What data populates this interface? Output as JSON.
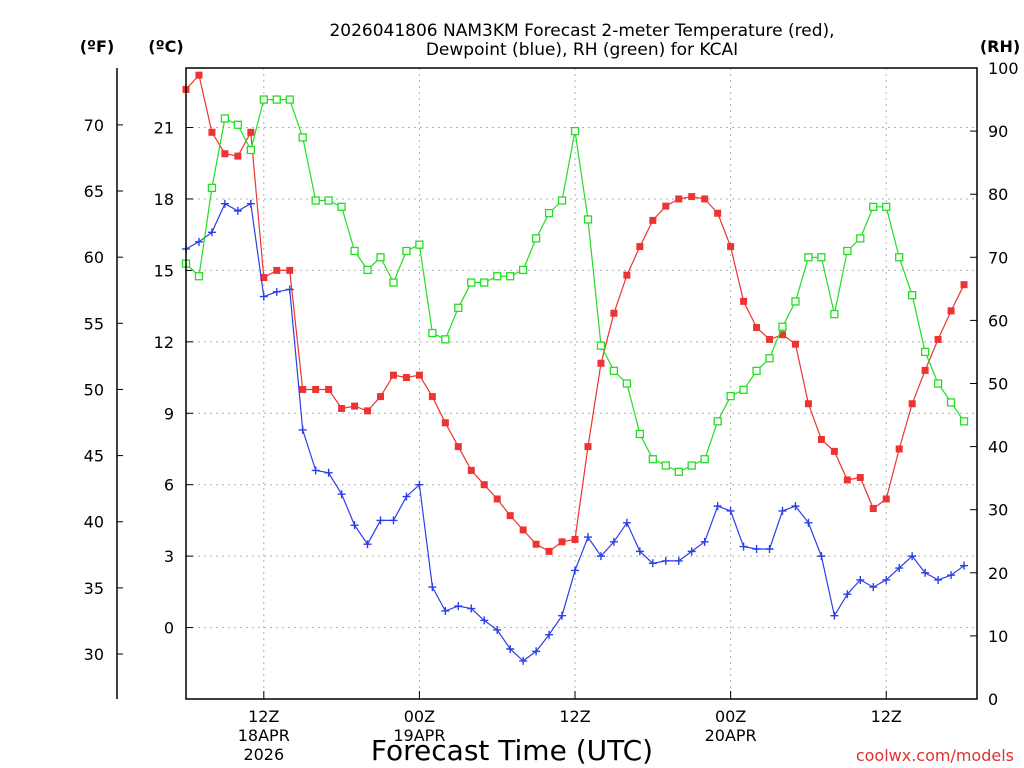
{
  "chart_data": {
    "type": "line",
    "title_line1": "2026041806 NAM3KM Forecast 2-meter Temperature (red),",
    "title_line2": "Dewpoint (blue), RH (green) for KCAI",
    "xlabel": "Forecast Time (UTC)",
    "left_unit_f": "(ºF)",
    "left_unit_c": "(ºC)",
    "right_unit": "(RH)",
    "credit": "coolwx.com/models",
    "x_range_hours": [
      0,
      61
    ],
    "celsius_range": [
      -3.0,
      23.5
    ],
    "rh_range": [
      0,
      100
    ],
    "fahrenheit_ticks": [
      "70",
      "65",
      "60",
      "55",
      "50",
      "45",
      "40",
      "35",
      "30"
    ],
    "fahrenheit_tick_values": [
      70,
      65,
      60,
      55,
      50,
      45,
      40,
      35,
      30
    ],
    "celsius_ticks": [
      "21",
      "18",
      "15",
      "12",
      "9",
      "6",
      "3",
      "0"
    ],
    "celsius_tick_values": [
      21,
      18,
      15,
      12,
      9,
      6,
      3,
      0
    ],
    "rh_ticks": [
      "100",
      "90",
      "80",
      "70",
      "60",
      "50",
      "40",
      "30",
      "20",
      "10",
      "0"
    ],
    "rh_tick_values": [
      100,
      90,
      80,
      70,
      60,
      50,
      40,
      30,
      20,
      10,
      0
    ],
    "x_ticks": [
      {
        "hour": 6,
        "l1": "12Z",
        "l2": "18APR",
        "l3": "2026"
      },
      {
        "hour": 18,
        "l1": "00Z",
        "l2": "19APR",
        "l3": ""
      },
      {
        "hour": 30,
        "l1": "12Z",
        "l2": "",
        "l3": ""
      },
      {
        "hour": 42,
        "l1": "00Z",
        "l2": "20APR",
        "l3": ""
      },
      {
        "hour": 54,
        "l1": "12Z",
        "l2": "",
        "l3": ""
      }
    ],
    "series": [
      {
        "name": "2-meter Temperature",
        "unit": "C",
        "color": "#ee3333",
        "marker": "square-filled",
        "values": [
          22.6,
          23.2,
          20.8,
          19.9,
          19.8,
          20.8,
          14.7,
          15.0,
          15.0,
          10.0,
          10.0,
          10.0,
          9.2,
          9.3,
          9.1,
          9.7,
          10.6,
          10.5,
          10.6,
          9.7,
          8.6,
          7.6,
          6.6,
          6.0,
          5.4,
          4.7,
          4.1,
          3.5,
          3.2,
          3.6,
          3.7,
          7.6,
          11.1,
          13.2,
          14.8,
          16.0,
          17.1,
          17.7,
          18.0,
          18.1,
          18.0,
          17.4,
          16.0,
          13.7,
          12.6,
          12.1,
          12.3,
          11.9,
          9.4,
          7.9,
          7.4,
          6.2,
          6.3,
          5.0,
          5.4,
          7.5,
          9.4,
          10.8,
          12.1,
          13.3,
          14.4
        ]
      },
      {
        "name": "Dewpoint",
        "unit": "C",
        "color": "#2a3fe6",
        "marker": "plus",
        "values": [
          15.9,
          16.2,
          16.6,
          17.8,
          17.5,
          17.8,
          13.9,
          14.1,
          14.2,
          8.3,
          6.6,
          6.5,
          5.6,
          4.3,
          3.5,
          4.5,
          4.5,
          5.5,
          6.0,
          1.7,
          0.7,
          0.9,
          0.8,
          0.3,
          -0.1,
          -0.9,
          -1.4,
          -1.0,
          -0.3,
          0.5,
          2.4,
          3.8,
          3.0,
          3.6,
          4.4,
          3.2,
          2.7,
          2.8,
          2.8,
          3.2,
          3.6,
          5.1,
          4.9,
          3.4,
          3.3,
          3.3,
          4.9,
          5.1,
          4.4,
          3.0,
          0.5,
          1.4,
          2.0,
          1.7,
          2.0,
          2.5,
          3.0,
          2.3,
          2.0,
          2.2,
          2.6
        ]
      },
      {
        "name": "RH",
        "unit": "%",
        "color": "#22dd22",
        "marker": "square-open",
        "values": [
          69,
          67,
          81,
          92,
          91,
          87,
          95,
          95,
          95,
          89,
          79,
          79,
          78,
          71,
          68,
          70,
          66,
          71,
          72,
          58,
          57,
          62,
          66,
          66,
          67,
          67,
          68,
          73,
          77,
          79,
          90,
          76,
          56,
          52,
          50,
          42,
          38,
          37,
          36,
          37,
          38,
          44,
          48,
          49,
          52,
          54,
          59,
          63,
          70,
          70,
          61,
          71,
          73,
          78,
          78,
          70,
          64,
          55,
          50,
          47,
          44
        ]
      }
    ]
  }
}
